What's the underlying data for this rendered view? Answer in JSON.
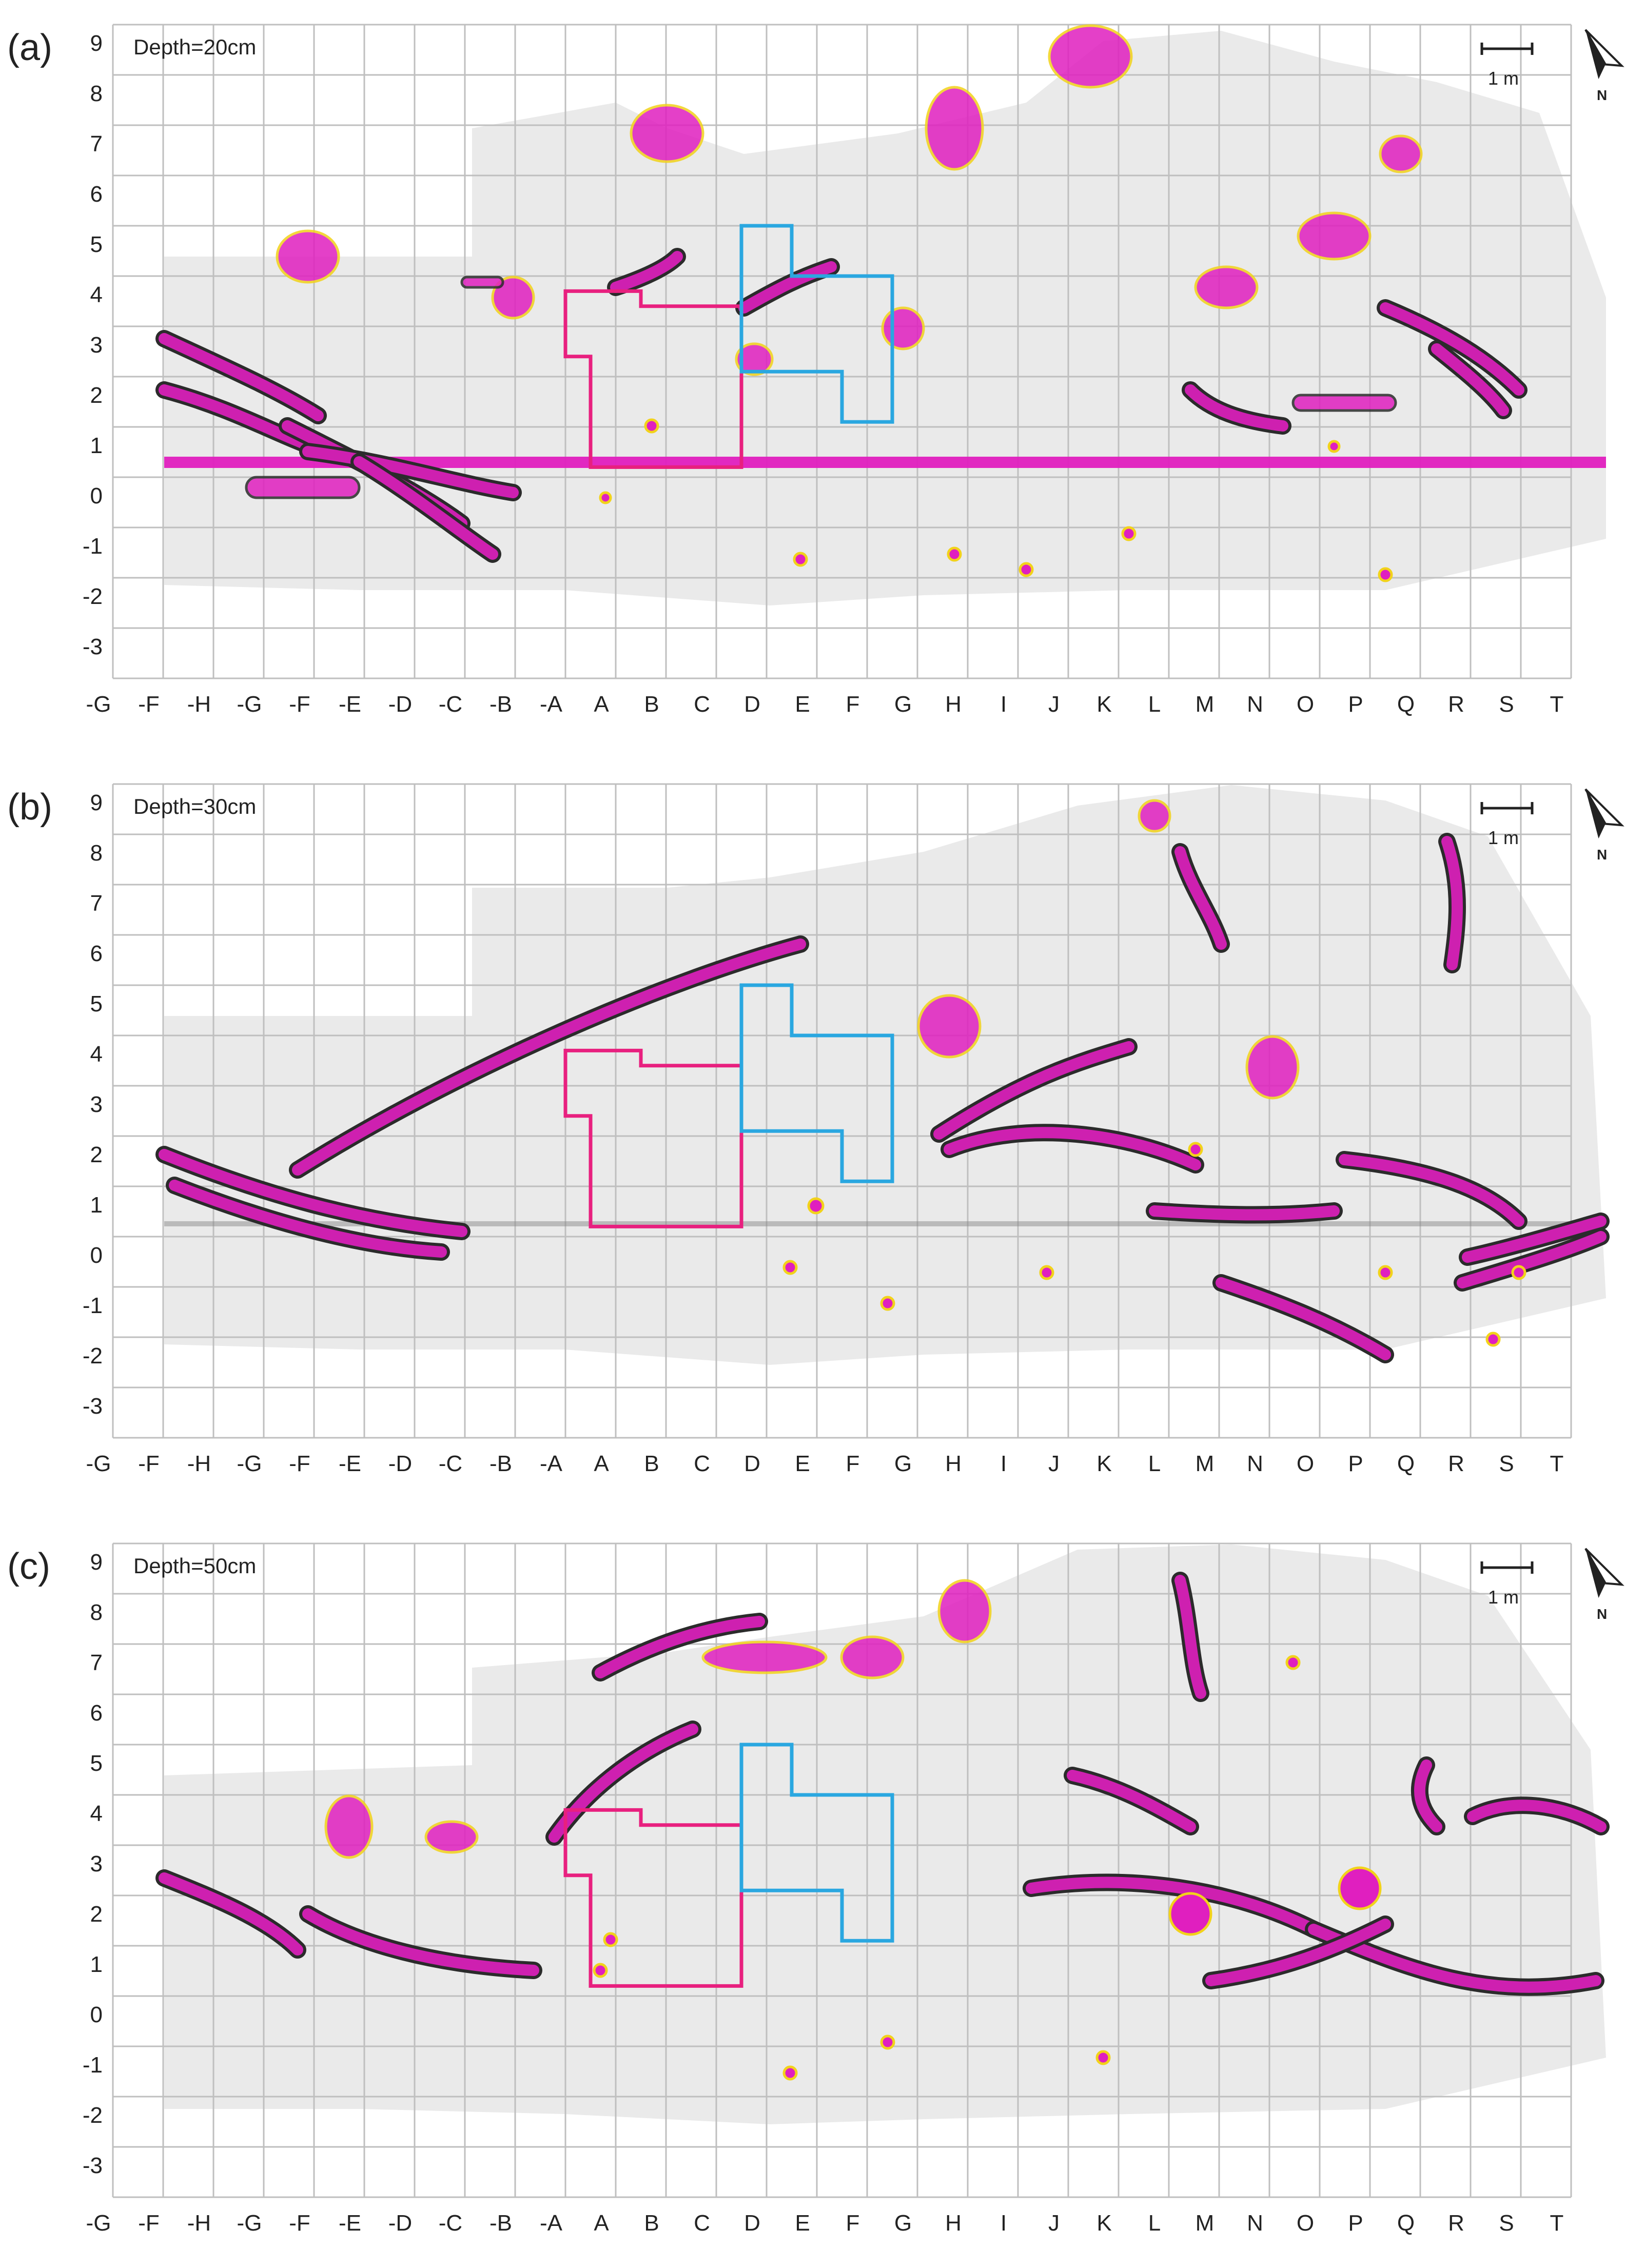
{
  "colors": {
    "grid": "#bfbfbf",
    "magenta": "#e01fbf",
    "outline_yellow": "#f2d21b",
    "outline_dark": "#2b2b2b",
    "excavation_pink": "#e8207f",
    "excavation_blue": "#2aa7e0",
    "survey_gray": "#d9d9d9"
  },
  "columns": [
    "-G",
    "-F",
    "-H",
    "-G",
    "-F",
    "-E",
    "-D",
    "-C",
    "-B",
    "-A",
    "A",
    "B",
    "C",
    "D",
    "E",
    "F",
    "G",
    "H",
    "I",
    "J",
    "K",
    "L",
    "M",
    "N",
    "O",
    "P",
    "Q",
    "R",
    "S",
    "T"
  ],
  "rows": [
    "9",
    "8",
    "7",
    "6",
    "5",
    "4",
    "3",
    "2",
    "1",
    "0",
    "-1",
    "-2",
    "-3"
  ],
  "scale_bar": {
    "label": "1 m"
  },
  "north_arrow": {
    "label": "N",
    "icon": "north-arrow-icon"
  },
  "panels": [
    {
      "id": "a",
      "letter": "(a)",
      "depth_label": "Depth=20cm"
    },
    {
      "id": "b",
      "letter": "(b)",
      "depth_label": "Depth=30cm"
    },
    {
      "id": "c",
      "letter": "(c)",
      "depth_label": "Depth=50cm"
    }
  ]
}
